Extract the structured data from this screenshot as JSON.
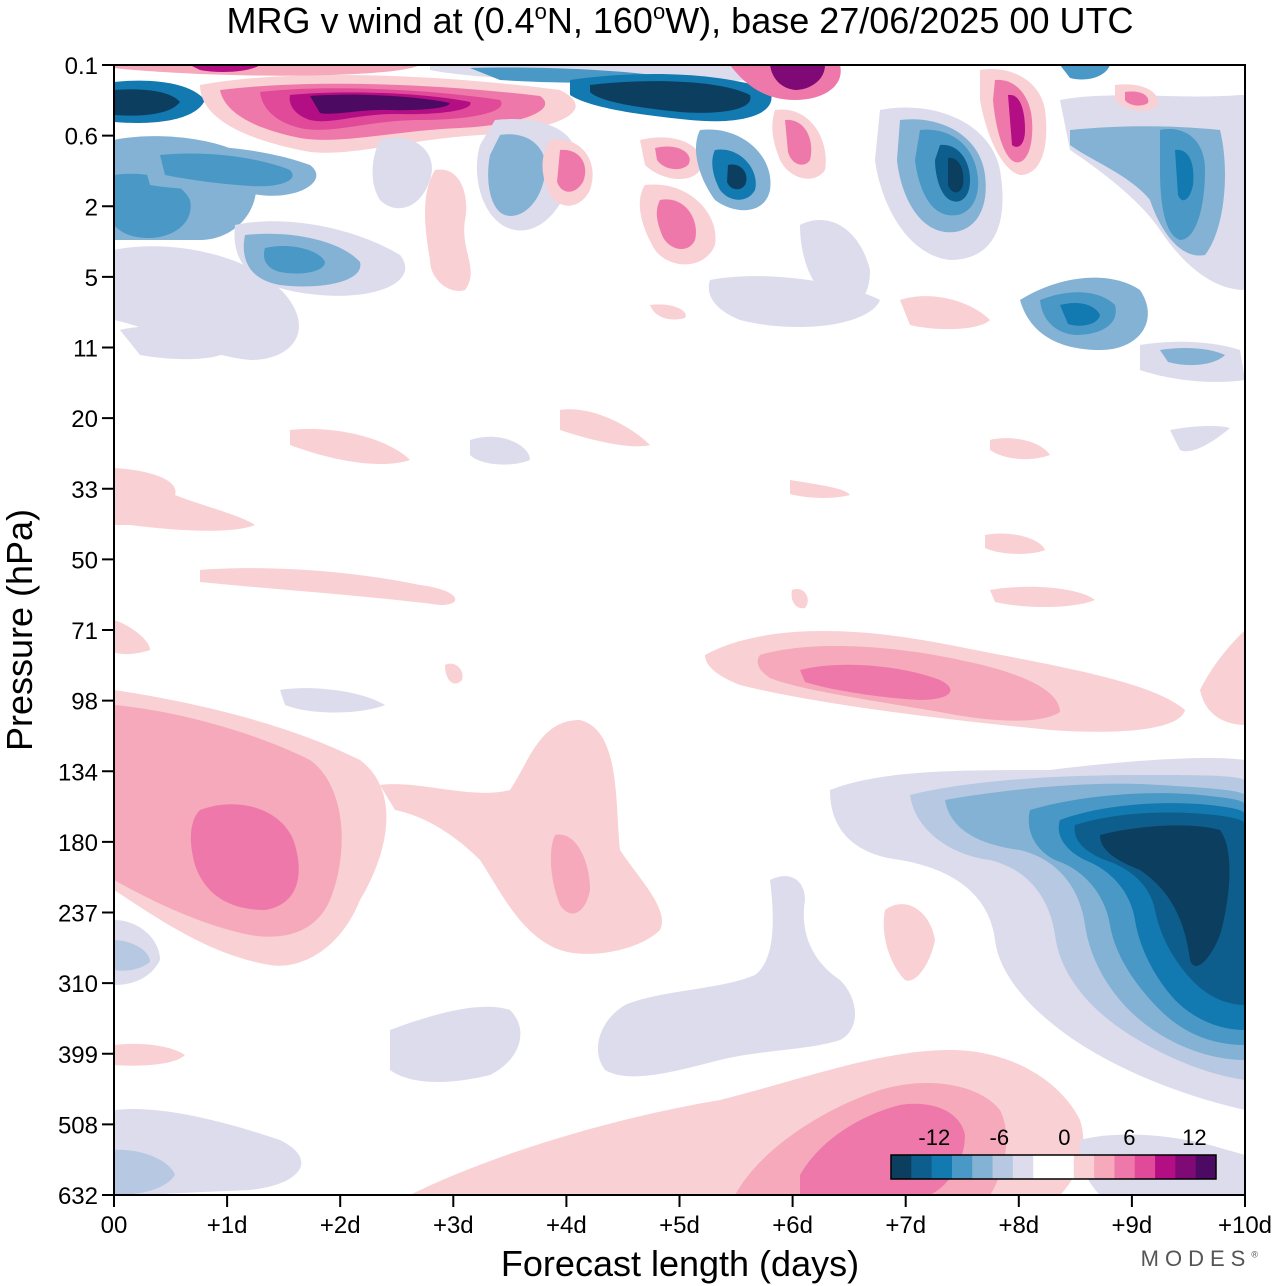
{
  "chart_data": {
    "type": "heatmap",
    "title": "MRG v wind at (0.4°N, 160°W),  base 27/06/2025  00 UTC",
    "title_parts": {
      "prefix": "MRG v wind at (0.4",
      "deg1": "o",
      "mid": "N, 160",
      "deg2": "o",
      "suffix": "W),  base 27/06/2025  00 UTC"
    },
    "xlabel": "Forecast length (days)",
    "ylabel": "Pressure (hPa)",
    "x_ticks": [
      "00",
      "+1d",
      "+2d",
      "+3d",
      "+4d",
      "+5d",
      "+6d",
      "+7d",
      "+8d",
      "+9d",
      "+10d"
    ],
    "y_ticks": [
      "0.1",
      "0.6",
      "2",
      "5",
      "11",
      "20",
      "33",
      "50",
      "71",
      "98",
      "134",
      "180",
      "237",
      "310",
      "399",
      "508",
      "632"
    ],
    "xlim": [
      0,
      10
    ],
    "colorbar": {
      "labels": [
        "-12",
        "-6",
        "0",
        "6",
        "12"
      ],
      "label_values": [
        -12,
        -6,
        0,
        6,
        12
      ],
      "levels": [
        -14,
        -12,
        -10,
        -8,
        -6,
        -4,
        -2,
        0,
        2,
        4,
        6,
        8,
        10,
        12,
        14
      ],
      "colors": [
        "#0c3e5f",
        "#0d5e8c",
        "#1279b1",
        "#4a98c5",
        "#84b2d4",
        "#b7c9e2",
        "#dcdcec",
        "#ffffff",
        "#ffffff",
        "#f9d0d3",
        "#f5a9ba",
        "#ef78aa",
        "#e04a99",
        "#b40e84",
        "#7f0a76",
        "#4c0a63"
      ]
    },
    "features": [
      {
        "x": 0.3,
        "y": 1.3,
        "value": -13
      },
      {
        "x": 1.0,
        "y": 0.2,
        "value": 10
      },
      {
        "x": 1.4,
        "y": 2.5,
        "value": -8
      },
      {
        "x": 2.3,
        "y": 1.5,
        "value": 13
      },
      {
        "x": 3.2,
        "y": 1.5,
        "value": 13
      },
      {
        "x": 3.8,
        "y": 1.2,
        "value": -8
      },
      {
        "x": 4.5,
        "y": 1.0,
        "value": -13
      },
      {
        "x": 5.5,
        "y": 3.5,
        "value": -10
      },
      {
        "x": 6.0,
        "y": 0.5,
        "value": 11
      },
      {
        "x": 7.5,
        "y": 3.0,
        "value": -12
      },
      {
        "x": 8.0,
        "y": 1.5,
        "value": 10
      },
      {
        "x": 8.6,
        "y": 7.5,
        "value": -10
      },
      {
        "x": 9.5,
        "y": 3.0,
        "value": -8
      },
      {
        "x": 1.0,
        "y": 34.0,
        "value": 5
      },
      {
        "x": 1.2,
        "y": 36.5,
        "value": 8
      },
      {
        "x": 4.0,
        "y": 36.0,
        "value": 4
      },
      {
        "x": 7.0,
        "y": 29.0,
        "value": 7
      },
      {
        "x": 9.5,
        "y": 41.0,
        "value": -15
      },
      {
        "x": 8.5,
        "y": 42.0,
        "value": -9
      },
      {
        "x": 0.3,
        "y": 55.0,
        "value": -4
      },
      {
        "x": 3.5,
        "y": 48.0,
        "value": -2
      },
      {
        "x": 5.5,
        "y": 46.0,
        "value": -2
      },
      {
        "x": 6.5,
        "y": 58.0,
        "value": 8
      }
    ]
  },
  "brand": {
    "text": "MODES",
    "mark": "®"
  }
}
